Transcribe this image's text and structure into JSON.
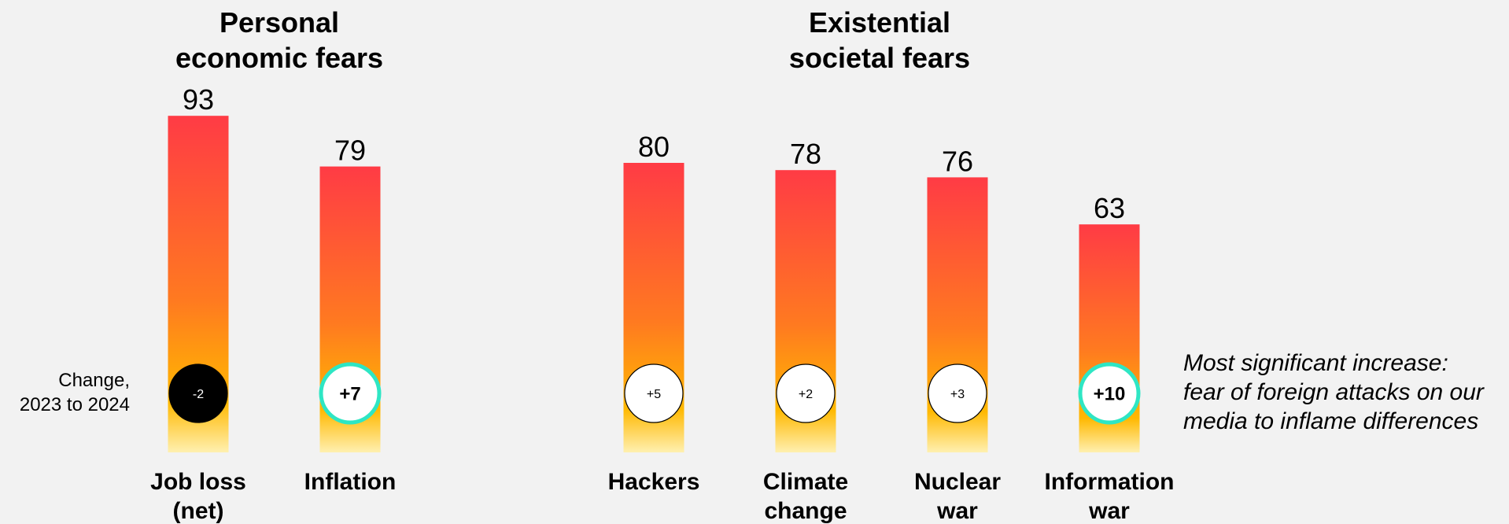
{
  "groups": [
    {
      "title_line1": "Personal",
      "title_line2": "economic fears"
    },
    {
      "title_line1": "Existential",
      "title_line2": "societal fears"
    }
  ],
  "change_label": {
    "line1": "Change,",
    "line2": "2023 to 2024"
  },
  "annotation": {
    "line1": "Most significant increase:",
    "line2": "fear of foreign attacks on our",
    "line3": "media to inflame differences"
  },
  "colors": {
    "bar_top": "#ff3b45",
    "bar_mid": "#ff7a20",
    "bar_low": "#ffb800",
    "bar_bottom": "#fff0b0",
    "highlight_ring": "#2ee6c4",
    "dark_badge": "#000000",
    "light_badge": "#ffffff",
    "background": "#f2f2f2"
  },
  "chart_data": {
    "type": "bar",
    "title": "",
    "ylim": [
      0,
      100
    ],
    "categories": [
      [
        "Job loss",
        "(net)"
      ],
      [
        "Inflation"
      ],
      [
        "Hackers"
      ],
      [
        "Climate",
        "change"
      ],
      [
        "Nuclear",
        "war"
      ],
      [
        "Information",
        "war"
      ]
    ],
    "values": [
      93,
      79,
      80,
      78,
      76,
      63
    ],
    "changes": [
      "-2",
      "+7",
      "+5",
      "+2",
      "+3",
      "+10"
    ],
    "change_style": [
      "dark",
      "highlight",
      "plain",
      "plain",
      "plain",
      "highlight"
    ],
    "groups": [
      {
        "name_index": 0,
        "members": [
          0,
          1
        ]
      },
      {
        "name_index": 1,
        "members": [
          2,
          3,
          4,
          5
        ]
      }
    ]
  }
}
